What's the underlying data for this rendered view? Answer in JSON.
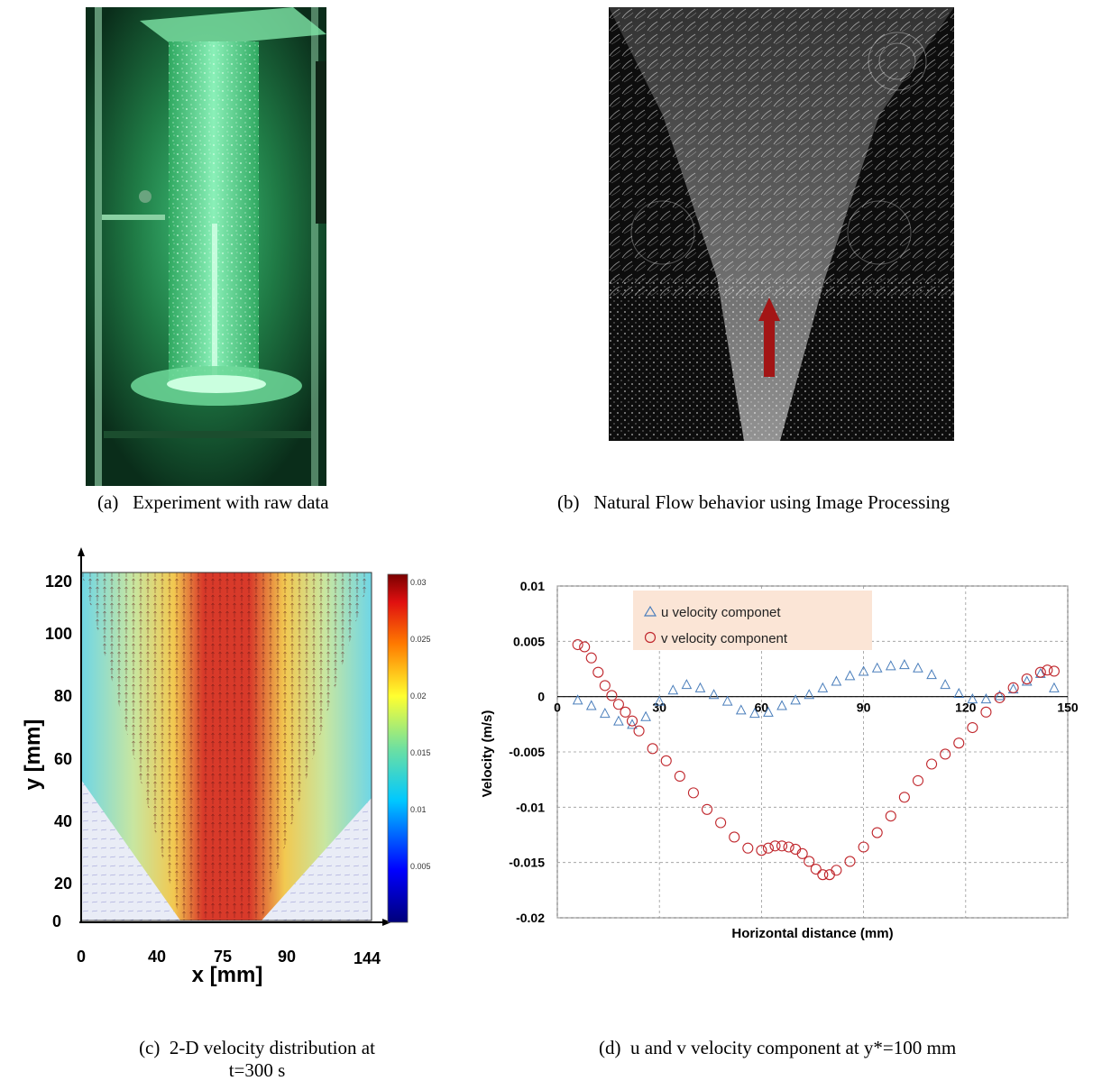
{
  "panel_a": {
    "caption_label": "(a)",
    "caption_text": "Experiment with raw data"
  },
  "panel_b": {
    "caption_label": "(b)",
    "caption_text": "Natural Flow behavior using Image Processing"
  },
  "panel_c": {
    "caption_label": "(c)",
    "caption_line1": "2-D velocity distribution at",
    "caption_line2": "t=300 s",
    "ylabel": "y [mm]",
    "xlabel": "x [mm]",
    "yticks": [
      "120",
      "100",
      "80",
      "60",
      "40",
      "20",
      "0"
    ],
    "xticks": [
      "0",
      "40",
      "75",
      "90",
      "144"
    ],
    "colorbar_ticks": [
      "0.03",
      "0.025",
      "0.02",
      "0.015",
      "0.01",
      "0.005"
    ]
  },
  "panel_d": {
    "caption_label": "(d)",
    "caption_text": "u and v velocity component at y*=100 mm"
  },
  "chart_data": {
    "type": "scatter",
    "title": "",
    "xlabel": "Horizontal distance (mm)",
    "ylabel": "Velocity (m/s)",
    "xlim": [
      0,
      150
    ],
    "ylim": [
      -0.02,
      0.01
    ],
    "xticks": [
      0,
      30,
      60,
      90,
      120,
      150
    ],
    "yticks": [
      0.01,
      0.005,
      0,
      -0.005,
      -0.01,
      -0.015,
      -0.02
    ],
    "ytick_labels": [
      "0.01",
      "0.005",
      "0",
      "-0.005",
      "-0.01",
      "-0.015",
      "-0.02"
    ],
    "grid": true,
    "legend_position": "top-left",
    "series": [
      {
        "name": "u velocity componet",
        "marker": "triangle",
        "color": "#4a7ebb",
        "x": [
          6,
          10,
          14,
          18,
          22,
          26,
          30,
          34,
          38,
          42,
          46,
          50,
          54,
          58,
          62,
          66,
          70,
          74,
          78,
          82,
          86,
          90,
          94,
          98,
          102,
          106,
          110,
          114,
          118,
          122,
          126,
          130,
          134,
          138,
          142,
          146
        ],
        "y": [
          -0.0003,
          -0.0008,
          -0.0015,
          -0.0022,
          -0.0025,
          -0.0018,
          -0.0004,
          0.0006,
          0.0011,
          0.0008,
          0.0002,
          -0.0004,
          -0.0012,
          -0.0015,
          -0.0014,
          -0.0008,
          -0.0003,
          0.0002,
          0.0008,
          0.0014,
          0.0019,
          0.0023,
          0.0026,
          0.0028,
          0.0029,
          0.0026,
          0.002,
          0.0011,
          0.0003,
          -0.0002,
          -0.0002,
          0.0001,
          0.0007,
          0.0014,
          0.0021,
          0.0008
        ]
      },
      {
        "name": "v velocity component",
        "marker": "circle",
        "color": "#c0272d",
        "x": [
          6,
          8,
          10,
          12,
          14,
          16,
          18,
          20,
          22,
          24,
          28,
          32,
          36,
          40,
          44,
          48,
          52,
          56,
          60,
          62,
          64,
          66,
          68,
          70,
          72,
          74,
          76,
          78,
          80,
          82,
          86,
          90,
          94,
          98,
          102,
          106,
          110,
          114,
          118,
          122,
          126,
          130,
          134,
          138,
          142,
          144,
          146
        ],
        "y": [
          0.0047,
          0.0045,
          0.0035,
          0.0022,
          0.001,
          0.0001,
          -0.0007,
          -0.0014,
          -0.0022,
          -0.0031,
          -0.0047,
          -0.0058,
          -0.0072,
          -0.0087,
          -0.0102,
          -0.0114,
          -0.0127,
          -0.0137,
          -0.0139,
          -0.0137,
          -0.0135,
          -0.0135,
          -0.0136,
          -0.0138,
          -0.0142,
          -0.0149,
          -0.0156,
          -0.0161,
          -0.0161,
          -0.0157,
          -0.0149,
          -0.0136,
          -0.0123,
          -0.0108,
          -0.0091,
          -0.0076,
          -0.0061,
          -0.0052,
          -0.0042,
          -0.0028,
          -0.0014,
          -0.0001,
          0.0008,
          0.0016,
          0.0022,
          0.0024,
          0.0023
        ]
      }
    ]
  }
}
